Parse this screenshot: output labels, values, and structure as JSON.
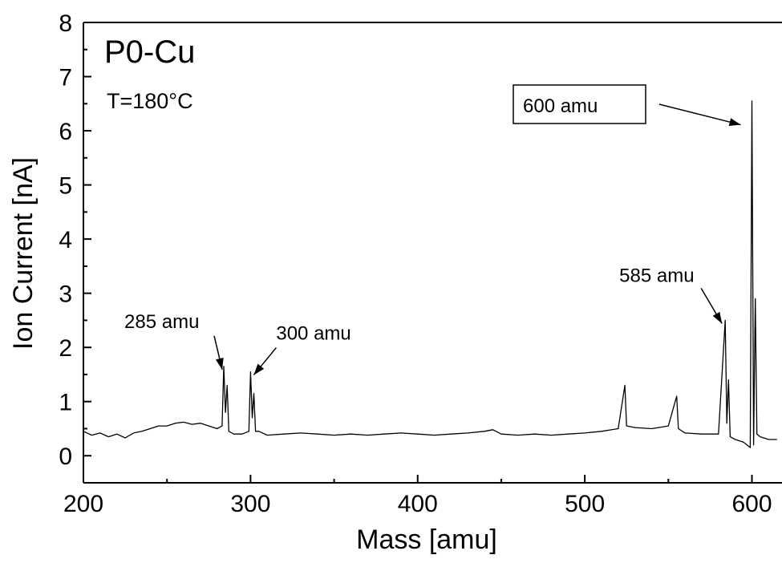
{
  "chart_data": {
    "type": "line",
    "title": "P0-Cu",
    "subtitle": "T=180°C",
    "xlabel": "Mass [amu]",
    "ylabel": "Ion Current [nA]",
    "xlim": [
      200,
      618
    ],
    "ylim": [
      -0.5,
      8
    ],
    "x_ticks": [
      200,
      300,
      400,
      500,
      600
    ],
    "y_ticks": [
      0,
      1,
      2,
      3,
      4,
      5,
      6,
      7,
      8
    ],
    "grid": false,
    "legend": "none",
    "series": [
      {
        "points": [
          [
            200,
            0.45
          ],
          [
            205,
            0.38
          ],
          [
            210,
            0.42
          ],
          [
            215,
            0.35
          ],
          [
            220,
            0.4
          ],
          [
            225,
            0.33
          ],
          [
            230,
            0.42
          ],
          [
            235,
            0.45
          ],
          [
            240,
            0.5
          ],
          [
            245,
            0.55
          ],
          [
            250,
            0.55
          ],
          [
            255,
            0.6
          ],
          [
            260,
            0.62
          ],
          [
            265,
            0.58
          ],
          [
            270,
            0.6
          ],
          [
            275,
            0.55
          ],
          [
            280,
            0.5
          ],
          [
            283,
            0.55
          ],
          [
            284,
            1.65
          ],
          [
            285,
            0.8
          ],
          [
            286,
            1.3
          ],
          [
            287,
            0.45
          ],
          [
            290,
            0.4
          ],
          [
            295,
            0.4
          ],
          [
            299,
            0.45
          ],
          [
            300,
            1.55
          ],
          [
            301,
            0.7
          ],
          [
            302,
            1.15
          ],
          [
            303,
            0.45
          ],
          [
            305,
            0.45
          ],
          [
            310,
            0.38
          ],
          [
            320,
            0.4
          ],
          [
            330,
            0.42
          ],
          [
            340,
            0.4
          ],
          [
            350,
            0.38
          ],
          [
            360,
            0.4
          ],
          [
            370,
            0.38
          ],
          [
            380,
            0.4
          ],
          [
            390,
            0.42
          ],
          [
            400,
            0.4
          ],
          [
            410,
            0.38
          ],
          [
            420,
            0.4
          ],
          [
            430,
            0.42
          ],
          [
            440,
            0.45
          ],
          [
            445,
            0.48
          ],
          [
            450,
            0.4
          ],
          [
            460,
            0.38
          ],
          [
            470,
            0.4
          ],
          [
            480,
            0.38
          ],
          [
            490,
            0.4
          ],
          [
            500,
            0.42
          ],
          [
            510,
            0.45
          ],
          [
            520,
            0.5
          ],
          [
            524,
            1.3
          ],
          [
            525,
            0.55
          ],
          [
            530,
            0.52
          ],
          [
            540,
            0.5
          ],
          [
            550,
            0.55
          ],
          [
            555,
            1.1
          ],
          [
            556,
            0.5
          ],
          [
            560,
            0.42
          ],
          [
            570,
            0.4
          ],
          [
            580,
            0.4
          ],
          [
            584,
            2.5
          ],
          [
            585,
            0.6
          ],
          [
            586,
            1.4
          ],
          [
            587,
            0.35
          ],
          [
            590,
            0.3
          ],
          [
            595,
            0.25
          ],
          [
            599,
            0.15
          ],
          [
            600,
            6.55
          ],
          [
            601,
            0.2
          ],
          [
            602,
            2.9
          ],
          [
            603,
            0.4
          ],
          [
            605,
            0.35
          ],
          [
            610,
            0.3
          ],
          [
            615,
            0.3
          ]
        ]
      }
    ],
    "annotations": [
      {
        "text": "285 amu",
        "x": 284,
        "y": 1.65
      },
      {
        "text": "300 amu",
        "x": 300,
        "y": 1.55
      },
      {
        "text": "585 amu",
        "x": 584,
        "y": 2.5
      },
      {
        "text": "600 amu",
        "x": 600,
        "y": 6.2,
        "boxed": true
      }
    ]
  }
}
